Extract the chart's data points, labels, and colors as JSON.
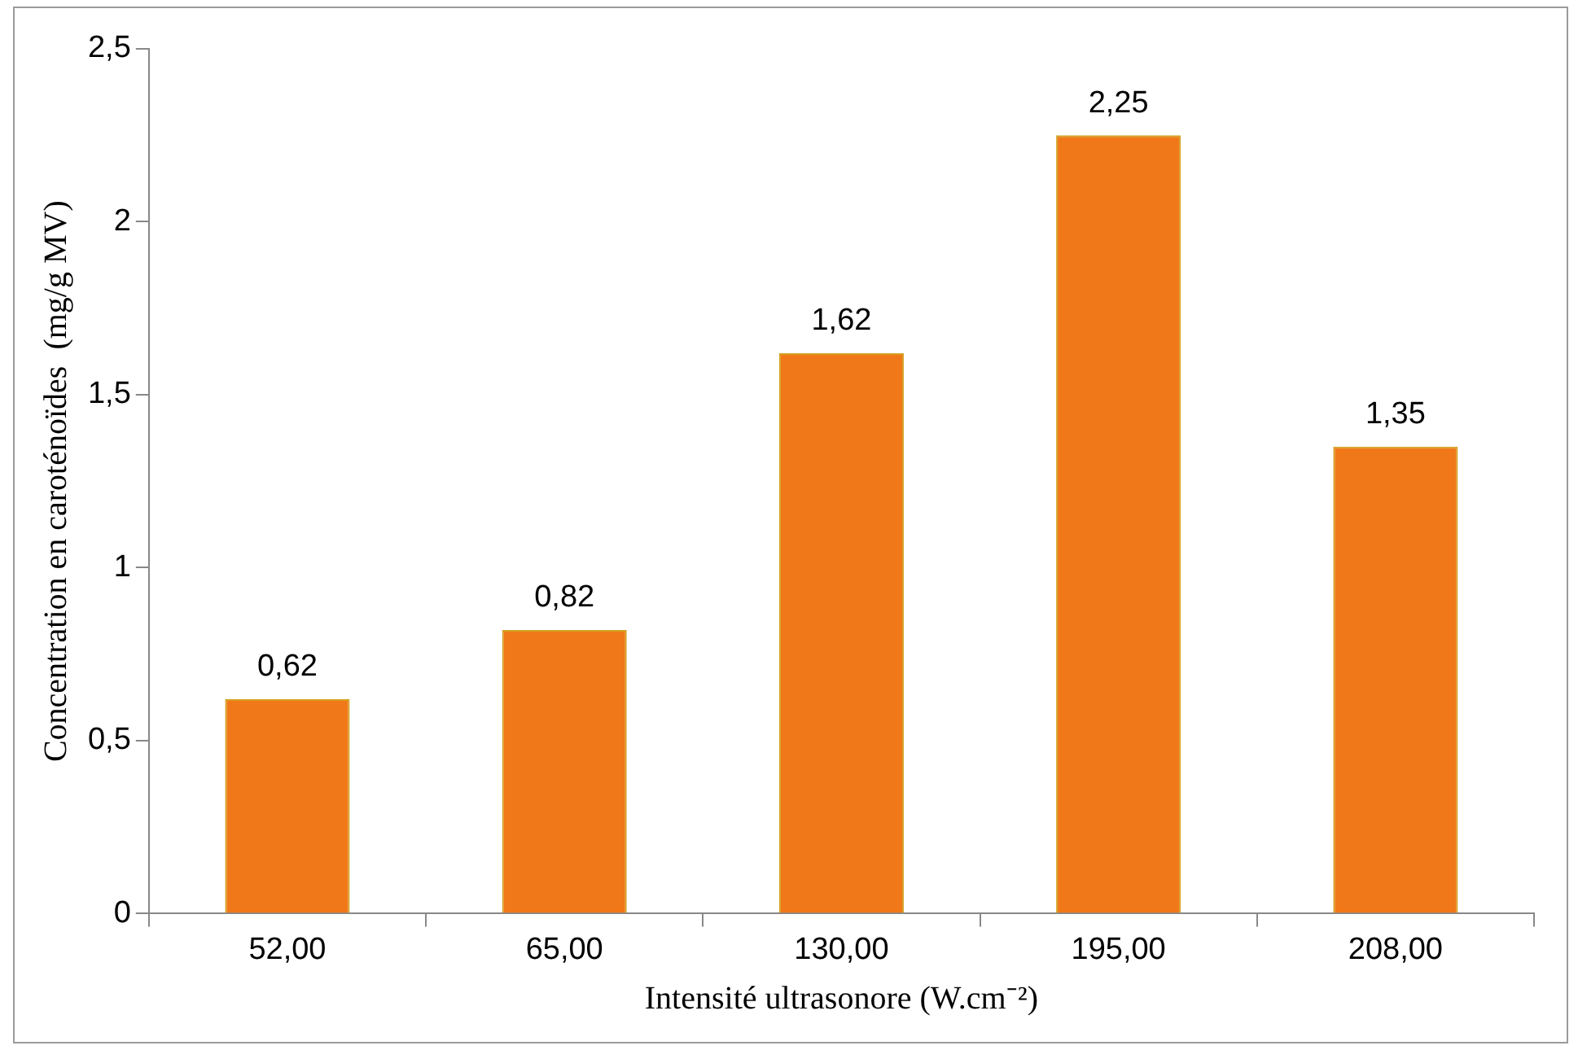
{
  "chart_data": {
    "type": "bar",
    "xlabel": "Intensité ultrasonore (W.cm⁻²)",
    "ylabel": "Concentration en caroténoïdes  (mg/g MV)",
    "categories": [
      "52,00",
      "65,00",
      "130,00",
      "195,00",
      "208,00"
    ],
    "values": [
      0.62,
      0.82,
      1.62,
      2.25,
      1.35
    ],
    "value_labels": [
      "0,62",
      "0,82",
      "1,62",
      "2,25",
      "1,35"
    ],
    "color": "#f07818",
    "ylim": [
      0,
      2.5
    ],
    "yticks": [
      0,
      {
        "value": 0.5,
        "label": "0,5"
      },
      1,
      {
        "value": 1.5,
        "label": "1,5"
      },
      2,
      {
        "value": 2.5,
        "label": "2,5"
      }
    ],
    "grid": false,
    "legend": false
  }
}
